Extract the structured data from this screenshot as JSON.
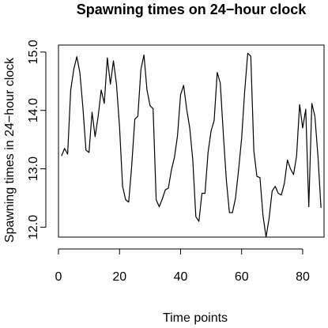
{
  "chart_data": {
    "type": "line",
    "title": "Spawning times on 24−hour clock",
    "xlabel": "Time points",
    "ylabel": "Spawning times in 24−hour clock",
    "xlim": [
      0,
      87
    ],
    "ylim": [
      11.83,
      15.12
    ],
    "x_ticks": [
      0,
      20,
      40,
      60,
      80
    ],
    "x_tick_labels": [
      "0",
      "20",
      "40",
      "60",
      "80"
    ],
    "y_ticks": [
      12.0,
      13.0,
      14.0,
      15.0
    ],
    "y_tick_labels": [
      "12.0",
      "13.0",
      "14.0",
      "15.0"
    ],
    "grid": false,
    "series": [
      {
        "x": [
          1,
          2,
          3,
          4,
          5,
          6,
          7,
          8,
          9,
          10,
          11,
          12,
          13,
          14,
          15,
          16,
          17,
          18,
          19,
          20,
          21,
          22,
          23,
          24,
          25,
          26,
          27,
          28,
          29,
          30,
          31,
          32,
          33,
          34,
          35,
          36,
          37,
          38,
          39,
          40,
          41,
          42,
          43,
          44,
          45,
          46,
          47,
          48,
          49,
          50,
          51,
          52,
          53,
          54,
          55,
          56,
          57,
          58,
          59,
          60,
          61,
          62,
          63,
          64,
          65,
          66,
          67,
          68,
          69,
          70,
          71,
          72,
          73,
          74,
          75,
          76,
          77,
          78,
          79,
          80,
          81,
          82,
          83,
          84,
          85,
          86
        ],
        "values": [
          13.22,
          13.35,
          13.25,
          14.35,
          14.7,
          14.92,
          14.65,
          14.05,
          13.32,
          13.28,
          13.97,
          13.55,
          13.9,
          14.35,
          14.12,
          14.9,
          14.45,
          14.85,
          14.45,
          13.72,
          12.7,
          12.47,
          12.43,
          13.06,
          13.85,
          13.9,
          14.7,
          14.95,
          14.35,
          14.08,
          14.03,
          12.47,
          12.35,
          12.48,
          12.64,
          12.67,
          12.98,
          13.2,
          13.57,
          14.27,
          14.43,
          14.02,
          13.7,
          13.15,
          12.18,
          12.1,
          12.58,
          12.58,
          13.28,
          13.65,
          13.83,
          14.65,
          14.47,
          13.6,
          12.8,
          12.25,
          12.25,
          12.5,
          12.98,
          13.52,
          14.33,
          14.98,
          14.93,
          13.31,
          12.87,
          12.85,
          12.2,
          11.83,
          12.15,
          12.62,
          12.7,
          12.58,
          12.55,
          12.75,
          13.15,
          13.0,
          12.9,
          13.22,
          14.1,
          13.7,
          14.02,
          12.35,
          14.12,
          13.9,
          13.22,
          12.33
        ]
      }
    ]
  }
}
